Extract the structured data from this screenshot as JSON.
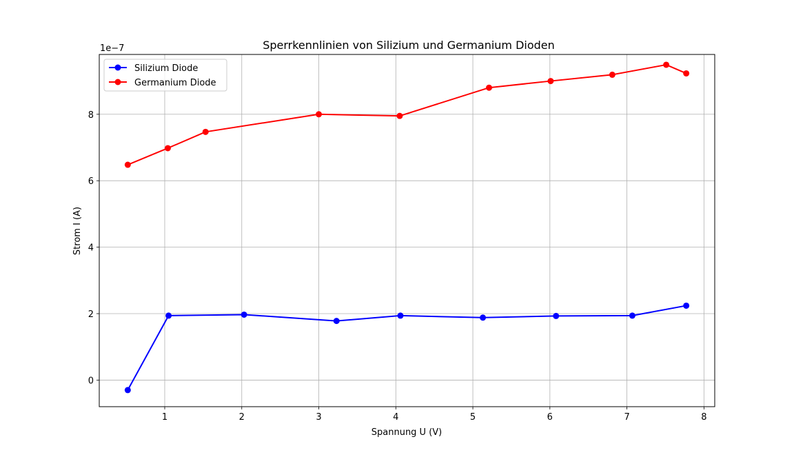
{
  "chart_data": {
    "type": "line",
    "title": "Sperrkennlinien von Silizium und Germanium Dioden",
    "xlabel": "Spannung U (V)",
    "ylabel": "Strom I (A)",
    "y_offset_text": "1e−7",
    "xlim": [
      0.15,
      8.14
    ],
    "ylim": [
      -0.8,
      9.8
    ],
    "y_scale_factor": 1e-07,
    "x_ticks": [
      1,
      2,
      3,
      4,
      5,
      6,
      7,
      8
    ],
    "y_ticks": [
      0,
      2,
      4,
      6,
      8
    ],
    "grid": true,
    "legend_position": "top-left",
    "series": [
      {
        "name": "Silizium Diode",
        "color": "#0000ff",
        "marker": "circle",
        "x": [
          0.52,
          1.05,
          2.03,
          3.23,
          4.06,
          5.13,
          6.08,
          7.07,
          7.77
        ],
        "y": [
          -0.3,
          1.94,
          1.97,
          1.78,
          1.94,
          1.88,
          1.93,
          1.94,
          2.24
        ]
      },
      {
        "name": "Germanium Diode",
        "color": "#ff0000",
        "marker": "circle",
        "x": [
          0.52,
          1.04,
          1.53,
          3.0,
          4.05,
          5.21,
          6.01,
          6.81,
          7.51,
          7.77
        ],
        "y": [
          6.48,
          6.98,
          7.47,
          8.0,
          7.95,
          8.8,
          9.0,
          9.19,
          9.49,
          9.23
        ]
      }
    ]
  }
}
